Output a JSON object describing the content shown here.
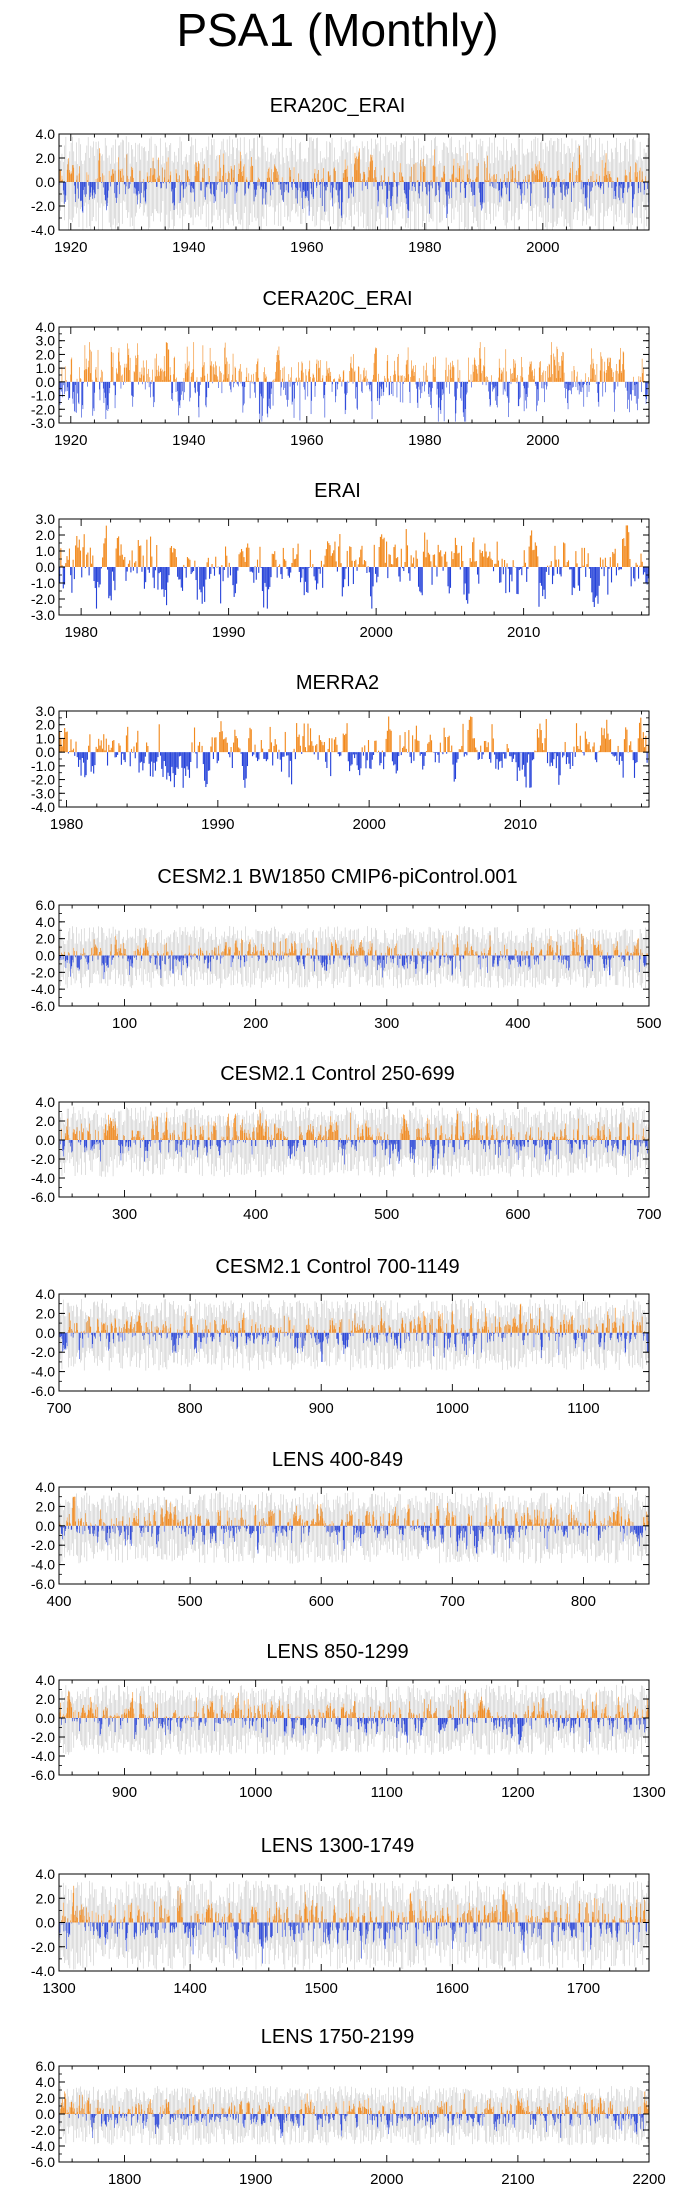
{
  "title": "PSA1 (Monthly)",
  "colors": {
    "positive": "#f28a1e",
    "negative": "#2643d9",
    "spread": "#c8c8c8",
    "axis": "#000000"
  },
  "chart_data": [
    {
      "type": "bar",
      "title": "ERA20C_ERAI",
      "xlim": [
        1918,
        2018
      ],
      "ylim": [
        -4,
        4
      ],
      "yticks": [
        "4.0",
        "2.0",
        "0.0",
        "-2.0",
        "-4.0"
      ],
      "ytick_values": [
        4,
        2,
        0,
        -2,
        -4
      ],
      "xticks": [
        "1920",
        "1940",
        "1960",
        "1980",
        "2000"
      ],
      "xtick_values": [
        1920,
        1940,
        1960,
        1980,
        2000
      ],
      "amplitude": 1.1,
      "peak": 3.0,
      "spread": true,
      "seed": 11
    },
    {
      "type": "bar",
      "title": "CERA20C_ERAI",
      "xlim": [
        1918,
        2018
      ],
      "ylim": [
        -3,
        4
      ],
      "yticks": [
        "4.0",
        "3.0",
        "2.0",
        "1.0",
        "0.0",
        "-1.0",
        "-2.0",
        "-3.0"
      ],
      "ytick_values": [
        4,
        3,
        2,
        1,
        0,
        -1,
        -2,
        -3
      ],
      "xticks": [
        "1920",
        "1940",
        "1960",
        "1980",
        "2000"
      ],
      "xtick_values": [
        1920,
        1940,
        1960,
        1980,
        2000
      ],
      "amplitude": 1.2,
      "peak": 2.9,
      "spread": false,
      "seed": 23
    },
    {
      "type": "bar",
      "title": "ERAI",
      "xlim": [
        1978.5,
        2018.5
      ],
      "ylim": [
        -3,
        3
      ],
      "yticks": [
        "3.0",
        "2.0",
        "1.0",
        "0.0",
        "-1.0",
        "-2.0",
        "-3.0"
      ],
      "ytick_values": [
        3,
        2,
        1,
        0,
        -1,
        -2,
        -3
      ],
      "xticks": [
        "1980",
        "1990",
        "2000",
        "2010"
      ],
      "xtick_values": [
        1980,
        1990,
        2000,
        2010
      ],
      "amplitude": 1.1,
      "peak": 2.6,
      "spread": false,
      "seed": 37
    },
    {
      "type": "bar",
      "title": "MERRA2",
      "xlim": [
        1979.5,
        2018.5
      ],
      "ylim": [
        -4,
        3
      ],
      "yticks": [
        "3.0",
        "2.0",
        "1.0",
        "0.0",
        "-1.0",
        "-2.0",
        "-3.0",
        "-4.0"
      ],
      "ytick_values": [
        3,
        2,
        1,
        0,
        -1,
        -2,
        -3,
        -4
      ],
      "xticks": [
        "1980",
        "1990",
        "2000",
        "2010"
      ],
      "xtick_values": [
        1980,
        1990,
        2000,
        2010
      ],
      "amplitude": 1.1,
      "peak": 2.6,
      "spread": false,
      "seed": 41
    },
    {
      "type": "bar",
      "title": "CESM2.1 BW1850 CMIP6-piControl.001",
      "xlim": [
        50,
        500
      ],
      "ylim": [
        -6,
        6
      ],
      "yticks": [
        "6.0",
        "4.0",
        "2.0",
        "0.0",
        "-2.0",
        "-4.0",
        "-6.0"
      ],
      "ytick_values": [
        6,
        4,
        2,
        0,
        -2,
        -4,
        -6
      ],
      "xticks": [
        "100",
        "200",
        "300",
        "400",
        "500"
      ],
      "xtick_values": [
        100,
        200,
        300,
        400,
        500
      ],
      "amplitude": 1.0,
      "peak": 3.4,
      "spread": true,
      "seed": 53
    },
    {
      "type": "bar",
      "title": "CESM2.1 Control 250-699",
      "xlim": [
        250,
        700
      ],
      "ylim": [
        -6,
        4
      ],
      "yticks": [
        "4.0",
        "2.0",
        "0.0",
        "-2.0",
        "-4.0",
        "-6.0"
      ],
      "ytick_values": [
        4,
        2,
        0,
        -2,
        -4,
        -6
      ],
      "xticks": [
        "300",
        "400",
        "500",
        "600",
        "700"
      ],
      "xtick_values": [
        300,
        400,
        500,
        600,
        700
      ],
      "amplitude": 1.0,
      "peak": 3.2,
      "spread": true,
      "seed": 67
    },
    {
      "type": "bar",
      "title": "CESM2.1 Control 700-1149",
      "xlim": [
        700,
        1150
      ],
      "ylim": [
        -6,
        4
      ],
      "yticks": [
        "4.0",
        "2.0",
        "0.0",
        "-2.0",
        "-4.0",
        "-6.0"
      ],
      "ytick_values": [
        4,
        2,
        0,
        -2,
        -4,
        -6
      ],
      "xticks": [
        "700",
        "800",
        "900",
        "1000",
        "1100"
      ],
      "xtick_values": [
        700,
        800,
        900,
        1000,
        1100
      ],
      "amplitude": 1.0,
      "peak": 3.0,
      "spread": true,
      "seed": 71
    },
    {
      "type": "bar",
      "title": "LENS 400-849",
      "xlim": [
        400,
        850
      ],
      "ylim": [
        -6,
        4
      ],
      "yticks": [
        "4.0",
        "2.0",
        "0.0",
        "-2.0",
        "-4.0",
        "-6.0"
      ],
      "ytick_values": [
        4,
        2,
        0,
        -2,
        -4,
        -6
      ],
      "xticks": [
        "400",
        "500",
        "600",
        "700",
        "800"
      ],
      "xtick_values": [
        400,
        500,
        600,
        700,
        800
      ],
      "amplitude": 1.0,
      "peak": 3.0,
      "spread": true,
      "seed": 83
    },
    {
      "type": "bar",
      "title": "LENS 850-1299",
      "xlim": [
        850,
        1300
      ],
      "ylim": [
        -6,
        4
      ],
      "yticks": [
        "4.0",
        "2.0",
        "0.0",
        "-2.0",
        "-4.0",
        "-6.0"
      ],
      "ytick_values": [
        4,
        2,
        0,
        -2,
        -4,
        -6
      ],
      "xticks": [
        "900",
        "1000",
        "1100",
        "1200",
        "1300"
      ],
      "xtick_values": [
        900,
        1000,
        1100,
        1200,
        1300
      ],
      "amplitude": 1.0,
      "peak": 2.8,
      "spread": true,
      "seed": 97
    },
    {
      "type": "bar",
      "title": "LENS 1300-1749",
      "xlim": [
        1300,
        1750
      ],
      "ylim": [
        -4,
        4
      ],
      "yticks": [
        "4.0",
        "2.0",
        "0.0",
        "-2.0",
        "-4.0"
      ],
      "ytick_values": [
        4,
        2,
        0,
        -2,
        -4
      ],
      "xticks": [
        "1300",
        "1400",
        "1500",
        "1600",
        "1700"
      ],
      "xtick_values": [
        1300,
        1400,
        1500,
        1600,
        1700
      ],
      "amplitude": 1.0,
      "peak": 3.6,
      "spread": true,
      "seed": 101
    },
    {
      "type": "bar",
      "title": "LENS 1750-2199",
      "xlim": [
        1750,
        2200
      ],
      "ylim": [
        -6,
        6
      ],
      "yticks": [
        "6.0",
        "4.0",
        "2.0",
        "0.0",
        "-2.0",
        "-4.0",
        "-6.0"
      ],
      "ytick_values": [
        6,
        4,
        2,
        0,
        -2,
        -4,
        -6
      ],
      "xticks": [
        "1800",
        "1900",
        "2000",
        "2100",
        "2200"
      ],
      "xtick_values": [
        1800,
        1900,
        2000,
        2100,
        2200
      ],
      "amplitude": 1.0,
      "peak": 3.0,
      "spread": true,
      "seed": 113
    }
  ]
}
